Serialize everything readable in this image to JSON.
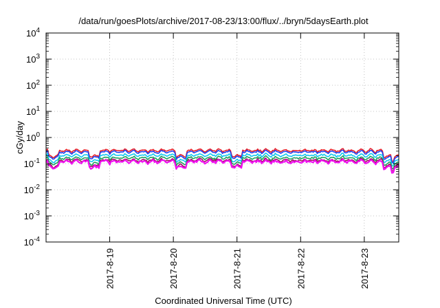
{
  "chart_data": {
    "type": "line",
    "title": "/data/run/goesPlots/archive/2017-08-23/13:00/flux/../bryn/5daysEarth.plot",
    "xlabel": "Coordinated Universal Time (UTC)",
    "ylabel": "cGy/day",
    "y_scale": "log",
    "ylim": [
      0.0001,
      10000
    ],
    "xlim": [
      "2017-08-18 00:00",
      "2017-08-23 13:00"
    ],
    "x_tick_labels": [
      "2017-8-19",
      "2017-8-20",
      "2017-8-21",
      "2017-8-22",
      "2017-8-23"
    ],
    "y_tick_labels": [
      {
        "base": "10",
        "exp": "-4"
      },
      {
        "base": "10",
        "exp": "-3"
      },
      {
        "base": "10",
        "exp": "-2"
      },
      {
        "base": "10",
        "exp": "-1"
      },
      {
        "base": "10",
        "exp": "0"
      },
      {
        "base": "10",
        "exp": "1"
      },
      {
        "base": "10",
        "exp": "2"
      },
      {
        "base": "10",
        "exp": "3"
      },
      {
        "base": "10",
        "exp": "4"
      }
    ],
    "grid": true,
    "series": [
      {
        "color": "#e8202a",
        "level": 0.32
      },
      {
        "color": "#2040f0",
        "level": 0.28
      },
      {
        "color": "#10c8f0",
        "level": 0.21
      },
      {
        "color": "#20a060",
        "level": 0.165
      },
      {
        "color": "#a01060",
        "level": 0.135
      },
      {
        "color": "#f010f0",
        "level": 0.12
      }
    ],
    "dips": [
      "2017-08-18 03:00",
      "2017-08-18 18:00",
      "2017-08-20 03:00",
      "2017-08-21 00:00",
      "2017-08-23 09:00",
      "2017-08-23 12:00"
    ]
  }
}
